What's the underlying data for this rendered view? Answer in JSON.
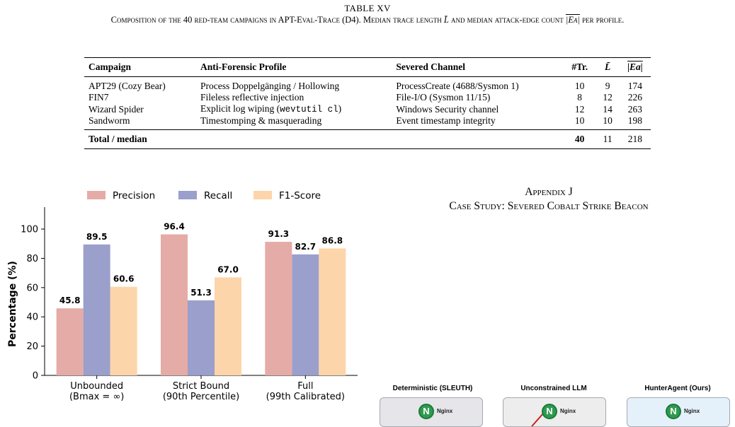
{
  "table": {
    "label": "TABLE XV",
    "caption": "Composition of the 40 red-team campaigns in APT-Eval-Trace (D4). Median trace length L̄ and median attack-edge count |Ea| per profile.",
    "caption_parts": {
      "pre": "Composition of the 40 red-team campaigns in APT-Eval-Trace (D4). Median trace length ",
      "Lbar": "L̄",
      "mid": " and median attack-edge count ",
      "Ea": "|Ea|",
      "post": " per profile."
    },
    "headers": {
      "campaign": "Campaign",
      "profile": "Anti-Forensic Profile",
      "channel": "Severed Channel",
      "traces": "#Tr.",
      "L": "L̄",
      "E": "|Ea|"
    },
    "rows": [
      {
        "campaign": "APT29 (Cozy Bear)",
        "profile": "Process Doppelgänging / Hollowing",
        "profile_pre": "Process Doppelgänging / Hollowing",
        "profile_code": "",
        "profile_post": "",
        "channel": "ProcessCreate (4688/Sysmon 1)",
        "traces": "10",
        "L": "9",
        "E": "174"
      },
      {
        "campaign": "FIN7",
        "profile": "Fileless reflective injection",
        "profile_pre": "Fileless reflective injection",
        "profile_code": "",
        "profile_post": "",
        "channel": "File-I/O (Sysmon 11/15)",
        "traces": "8",
        "L": "12",
        "E": "226"
      },
      {
        "campaign": "Wizard Spider",
        "profile": "Explicit log wiping (wevtutil cl)",
        "profile_pre": "Explicit log wiping (",
        "profile_code": "wevtutil cl",
        "profile_post": ")",
        "channel": "Windows Security channel",
        "traces": "12",
        "L": "14",
        "E": "263"
      },
      {
        "campaign": "Sandworm",
        "profile": "Timestomping & masquerading",
        "profile_pre": "Timestomping & masquerading",
        "profile_code": "",
        "profile_post": "",
        "channel": "Event timestamp integrity",
        "traces": "10",
        "L": "10",
        "E": "198"
      }
    ],
    "total": {
      "label": "Total / median",
      "traces": "40",
      "L": "11",
      "E": "218"
    }
  },
  "chart_data": {
    "type": "bar",
    "categories": [
      "Unbounded\n(Bmax = ∞)",
      "Strict Bound\n(90th Percentile)",
      "Full\n(99th Calibrated)"
    ],
    "category_lines": [
      [
        "Unbounded",
        "(Bmax = ∞)"
      ],
      [
        "Strict Bound",
        "(90th Percentile)"
      ],
      [
        "Full",
        "(99th Calibrated)"
      ]
    ],
    "series": [
      {
        "name": "Precision",
        "values": [
          45.8,
          96.4,
          91.3
        ],
        "color": "#e5aba6"
      },
      {
        "name": "Recall",
        "values": [
          89.5,
          51.3,
          82.7
        ],
        "color": "#9a9fcb"
      },
      {
        "name": "F1-Score",
        "values": [
          60.6,
          67.0,
          86.8
        ],
        "color": "#fdd5aa"
      }
    ],
    "data_labels": [
      [
        "45.8",
        "89.5",
        "60.6"
      ],
      [
        "96.4",
        "51.3",
        "67.0"
      ],
      [
        "91.3",
        "82.7",
        "86.8"
      ]
    ],
    "ylabel": "Percentage (%)",
    "xlabel": "",
    "ylim": [
      0,
      115
    ],
    "yticks": [
      0,
      20,
      40,
      60,
      80,
      100
    ],
    "legend": "top",
    "grid": false
  },
  "appendix": {
    "label": "Appendix J",
    "title": "Case Study: Severed Cobalt Strike Beacon"
  },
  "case_study": {
    "panels": [
      {
        "title": "Deterministic (SLEUTH)",
        "node_label": "Nginx",
        "icon": "nginx-icon",
        "bg": "#e5e5ea"
      },
      {
        "title": "Unconstrained LLM",
        "node_label": "Nginx",
        "icon": "nginx-icon",
        "bg": "#ededed"
      },
      {
        "title": "HunterAgent (Ours)",
        "node_label": "Nginx",
        "icon": "nginx-icon",
        "bg": "#e4f1fb"
      }
    ],
    "icon_letter": "N"
  }
}
